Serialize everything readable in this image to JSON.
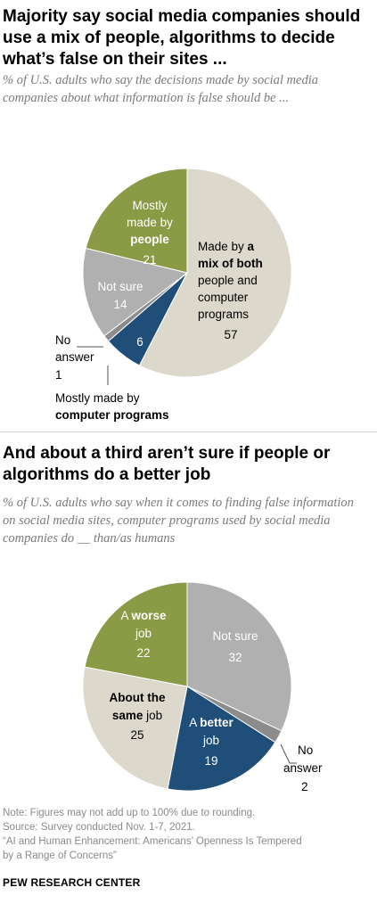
{
  "charts": {
    "chart1": {
      "title": "Majority say social media companies should use a mix of people, algorithms to decide what’s false on their sites ...",
      "subtitle": "% of U.S. adults who say the decisions made by social media companies about what information is false should be ..."
    },
    "chart2": {
      "title": "And about a third aren’t sure if people or algorithms do a better job",
      "subtitle": "% of U.S. adults who say when it comes to finding false information on social media sites, computer programs used by social media companies do __ than/as humans"
    }
  },
  "chart_data": [
    {
      "type": "pie",
      "title": "Majority say social media companies should use a mix of people, algorithms to decide what’s false on their sites ...",
      "slices": [
        {
          "label": "Made by a mix of both people and computer programs",
          "value": 57,
          "color": "#dcd8cb"
        },
        {
          "label": "Mostly made by computer programs",
          "value": 6,
          "color": "#1f4e79"
        },
        {
          "label": "No answer",
          "value": 1,
          "color": "#8c8c8c"
        },
        {
          "label": "Not sure",
          "value": 14,
          "color": "#b0b0b0"
        },
        {
          "label": "Mostly made by people",
          "value": 21,
          "color": "#8a9a45"
        }
      ]
    },
    {
      "type": "pie",
      "title": "And about a third aren’t sure if people or algorithms do a better job",
      "slices": [
        {
          "label": "Not sure",
          "value": 32,
          "color": "#b0b0b0"
        },
        {
          "label": "No answer",
          "value": 2,
          "color": "#8c8c8c"
        },
        {
          "label": "A better job",
          "value": 19,
          "color": "#1f4e79"
        },
        {
          "label": "About the same job",
          "value": 25,
          "color": "#dcd8cb"
        },
        {
          "label": "A worse job",
          "value": 22,
          "color": "#8a9a45"
        }
      ]
    }
  ],
  "labels": {
    "c1": {
      "mix": {
        "line1": "Made by ",
        "line1b": "a",
        "line2": "mix of both",
        "line3": "people and",
        "line4": "computer",
        "line5": "programs",
        "value": "57"
      },
      "people": {
        "line1": "Mostly",
        "line2": "made by",
        "line3": "people",
        "value": "21"
      },
      "notsure": {
        "line1": "Not sure",
        "value": "14"
      },
      "computer": {
        "value": "6",
        "line1": "Mostly made by",
        "line2": "computer programs"
      },
      "noanswer": {
        "line1": "No",
        "line2": "answer",
        "value": "1"
      }
    },
    "c2": {
      "notsure": {
        "line1": "Not sure",
        "value": "32"
      },
      "worse": {
        "line1a": "A ",
        "line1b": "worse",
        "line2": "job",
        "value": "22"
      },
      "same": {
        "line1": "About the",
        "line2a": "same",
        "line2b": " job",
        "value": "25"
      },
      "better": {
        "line1a": "A ",
        "line1b": "better",
        "line2": "job",
        "value": "19"
      },
      "noanswer": {
        "line1": "No",
        "line2": "answer",
        "value": "2"
      }
    }
  },
  "notes": {
    "note": "Note: Figures may not add up to 100% due to rounding.",
    "source": "Source: Survey conducted Nov. 1-7, 2021.",
    "report_line1": "“AI and Human Enhancement: Americans’ Openness Is Tempered",
    "report_line2": "by a Range of Concerns”"
  },
  "brand": "PEW RESEARCH CENTER"
}
